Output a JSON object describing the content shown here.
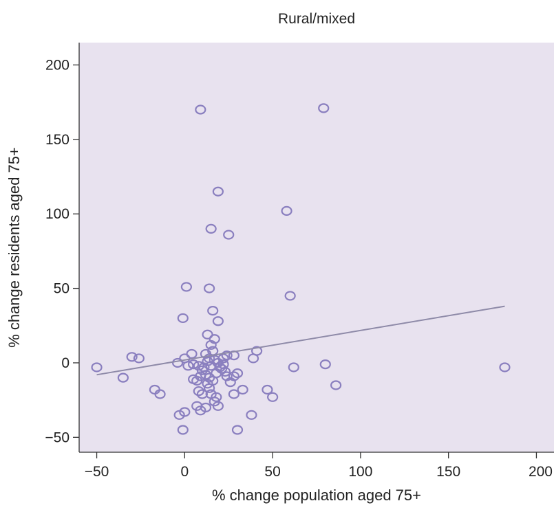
{
  "chart_data": {
    "type": "scatter",
    "title": "Rural/mixed",
    "xlabel": "% change population aged 75+",
    "ylabel": "% change residents aged 75+",
    "xlim": [
      -60,
      210
    ],
    "ylim": [
      -60,
      215
    ],
    "xticks": [
      -50,
      0,
      50,
      100,
      150,
      200
    ],
    "yticks": [
      -50,
      0,
      50,
      100,
      150,
      200
    ],
    "xtick_labels": [
      "−50",
      "0",
      "50",
      "100",
      "150",
      "200"
    ],
    "ytick_labels": [
      "−50",
      "0",
      "50",
      "100",
      "150",
      "200"
    ],
    "grid": false,
    "colors": {
      "background": "#e8e2ef",
      "point": "#8a7fbf",
      "line": "#8e8aa8"
    },
    "points": [
      [
        9,
        170
      ],
      [
        79,
        171
      ],
      [
        19,
        115
      ],
      [
        58,
        102
      ],
      [
        15,
        90
      ],
      [
        25,
        86
      ],
      [
        1,
        51
      ],
      [
        14,
        50
      ],
      [
        60,
        45
      ],
      [
        16,
        35
      ],
      [
        -1,
        30
      ],
      [
        19,
        28
      ],
      [
        13,
        19
      ],
      [
        17,
        16
      ],
      [
        15,
        12
      ],
      [
        16,
        8
      ],
      [
        41,
        8
      ],
      [
        39,
        3
      ],
      [
        28,
        5
      ],
      [
        14,
        3
      ],
      [
        22,
        3
      ],
      [
        24,
        5
      ],
      [
        4,
        6
      ],
      [
        -50,
        -3
      ],
      [
        -35,
        -10
      ],
      [
        -30,
        4
      ],
      [
        -26,
        3
      ],
      [
        -4,
        0
      ],
      [
        0,
        3
      ],
      [
        2,
        -2
      ],
      [
        5,
        -1
      ],
      [
        8,
        -2
      ],
      [
        10,
        -5
      ],
      [
        12,
        -8
      ],
      [
        14,
        -10
      ],
      [
        16,
        -12
      ],
      [
        18,
        -7
      ],
      [
        20,
        -3
      ],
      [
        22,
        -1
      ],
      [
        24,
        -9
      ],
      [
        26,
        -13
      ],
      [
        28,
        -9
      ],
      [
        30,
        -7
      ],
      [
        13,
        1
      ],
      [
        15,
        -2
      ],
      [
        17,
        2
      ],
      [
        19,
        0
      ],
      [
        21,
        -4
      ],
      [
        11,
        -3
      ],
      [
        9,
        -9
      ],
      [
        7,
        -12
      ],
      [
        13,
        -14
      ],
      [
        -17,
        -18
      ],
      [
        -14,
        -21
      ],
      [
        8,
        -19
      ],
      [
        10,
        -21
      ],
      [
        15,
        -21
      ],
      [
        18,
        -23
      ],
      [
        28,
        -21
      ],
      [
        33,
        -18
      ],
      [
        47,
        -18
      ],
      [
        50,
        -23
      ],
      [
        62,
        -3
      ],
      [
        80,
        -1
      ],
      [
        86,
        -15
      ],
      [
        182,
        -3
      ],
      [
        -3,
        -35
      ],
      [
        0,
        -33
      ],
      [
        7,
        -29
      ],
      [
        12,
        -30
      ],
      [
        17,
        -26
      ],
      [
        19,
        -29
      ],
      [
        9,
        -32
      ],
      [
        38,
        -35
      ],
      [
        -1,
        -45
      ],
      [
        30,
        -45
      ],
      [
        5,
        -11
      ],
      [
        14,
        -17
      ],
      [
        23,
        -6
      ],
      [
        12,
        6
      ]
    ],
    "trend_line": [
      [
        -50,
        -8
      ],
      [
        182,
        38
      ]
    ]
  }
}
